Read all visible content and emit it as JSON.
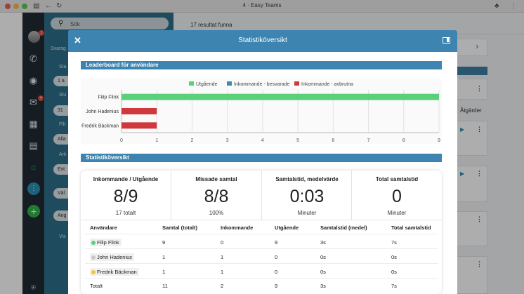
{
  "browser": {
    "title": "4 · Easy Teams",
    "colors": {
      "close": "#ec5f57",
      "minimize": "#f4be4f",
      "zoom": "#5fc94f"
    }
  },
  "rail": {
    "avatar_badge": "2",
    "mail_badge": "4",
    "icons": [
      "phone-icon",
      "chat-icon",
      "mail-icon",
      "calendar-icon",
      "clipboard-icon",
      "headset-icon",
      "dialpad-icon",
      "add-icon",
      "support-icon"
    ]
  },
  "sidebar": {
    "search_placeholder": "Sök",
    "labels": [
      "Svarsg",
      "Sta",
      "Slu",
      "Filt",
      "Ark",
      "Väl",
      "Ang",
      "Vis"
    ],
    "pills": [
      "1 a",
      "31",
      "Alla",
      "Ext"
    ]
  },
  "main": {
    "result_text": "17 resultat funna",
    "actions_label": "Åtgärder"
  },
  "modal": {
    "title": "Statistiköversikt",
    "leaderboard_title": "Leaderboard för användare",
    "stats_title": "Statistiköversikt"
  },
  "chart_data": {
    "type": "bar",
    "orientation": "horizontal",
    "stacked": true,
    "categories": [
      "Filip Flink",
      "John Hadenius",
      "Fredrik Bäckman"
    ],
    "series": [
      {
        "name": "Utgående",
        "color": "#5ad07a",
        "values": [
          9,
          0,
          0
        ]
      },
      {
        "name": "Inkommande - besvarade",
        "color": "#3d8ab5",
        "values": [
          0,
          0,
          0
        ]
      },
      {
        "name": "Inkommande - avbrutna",
        "color": "#d0393c",
        "values": [
          0,
          1,
          1
        ]
      }
    ],
    "xlim": [
      0,
      9
    ],
    "xticks": [
      "0",
      "1",
      "2",
      "3",
      "4",
      "5",
      "6",
      "7",
      "8",
      "9"
    ],
    "grid": true,
    "legend_position": "top"
  },
  "kpis": [
    {
      "title": "Inkommande / Utgående",
      "value": "8/9",
      "sub": "17 totalt"
    },
    {
      "title": "Missade samtal",
      "value": "8/8",
      "sub": "100%"
    },
    {
      "title": "Samtalstid, medelvärde",
      "value": "0:03",
      "sub": "Minuter"
    },
    {
      "title": "Total samtalstid",
      "value": "0",
      "sub": "Minuter"
    }
  ],
  "table": {
    "headers": [
      "Användare",
      "Samtal (totalt)",
      "Inkommande",
      "Utgående",
      "Samtalstid (medel)",
      "Total samtalstid"
    ],
    "rows": [
      {
        "user": "Filip Flink",
        "status_color": "#5ad07a",
        "total": "9",
        "incoming": "0",
        "outgoing": "9",
        "avg": "3s",
        "sum": "7s"
      },
      {
        "user": "John Hadenius",
        "status_color": "#c8c8c8",
        "total": "1",
        "incoming": "1",
        "outgoing": "0",
        "avg": "0s",
        "sum": "0s"
      },
      {
        "user": "Fredrik Bäckman",
        "status_color": "#f2c531",
        "total": "1",
        "incoming": "1",
        "outgoing": "0",
        "avg": "0s",
        "sum": "0s"
      }
    ],
    "totals": {
      "label": "Totalt",
      "total": "11",
      "incoming": "2",
      "outgoing": "9",
      "avg": "3s",
      "sum": "7s"
    }
  }
}
